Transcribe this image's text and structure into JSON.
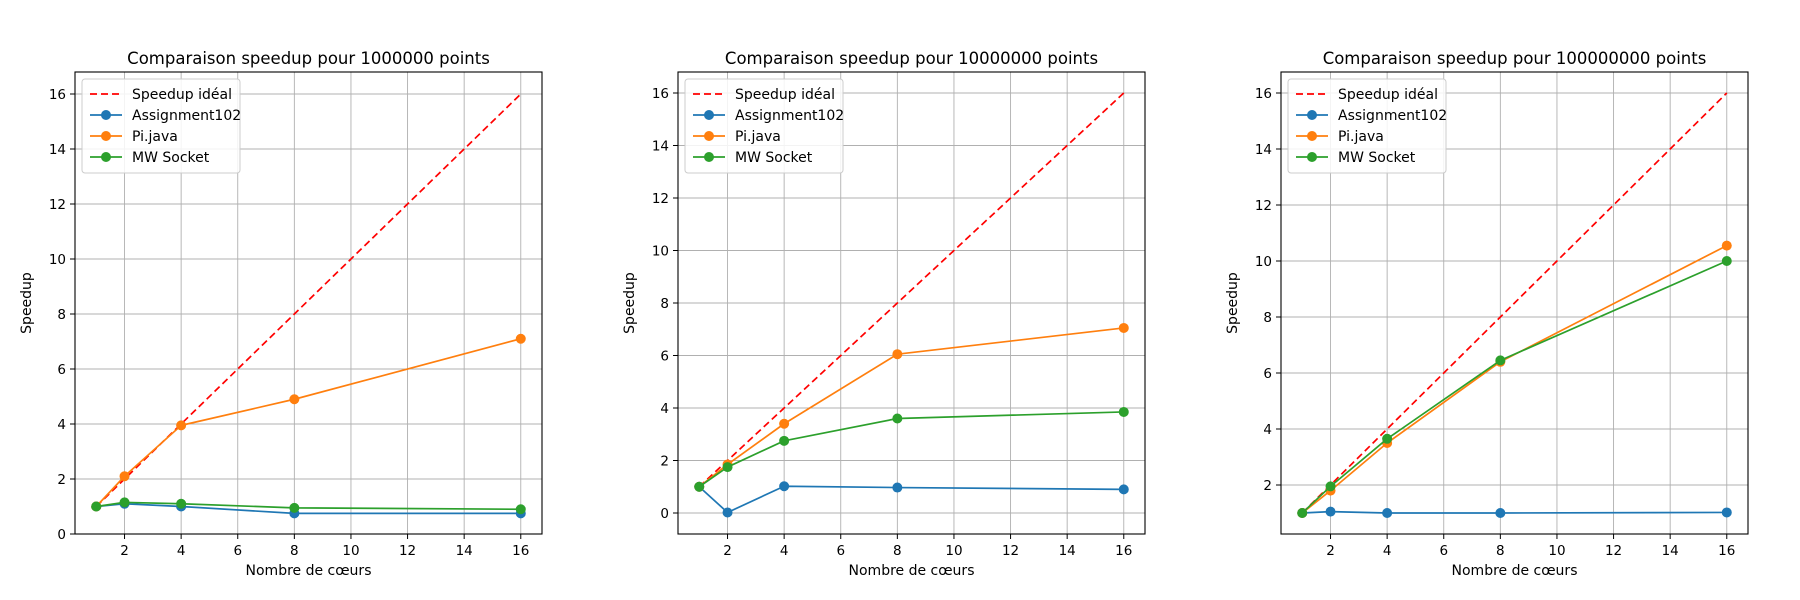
{
  "colors": {
    "ideal": "#ff0000",
    "assignment": "#1f77b4",
    "pijava": "#ff7f0e",
    "mwsocket": "#2ca02c",
    "grid": "#b0b0b0"
  },
  "chart_data": [
    {
      "type": "line",
      "title": "Comparaison speedup pour 1000000 points",
      "xlabel": "Nombre de cœurs",
      "ylabel": "Speedup",
      "xlim": [
        0.25,
        16.75
      ],
      "ylim": [
        0,
        16.8
      ],
      "xticks": [
        2,
        4,
        6,
        8,
        10,
        12,
        14,
        16
      ],
      "yticks": [
        0,
        2,
        4,
        6,
        8,
        10,
        12,
        14,
        16
      ],
      "grid": true,
      "legend_position": "upper-left",
      "x": [
        1,
        2,
        4,
        8,
        16
      ],
      "series": [
        {
          "name": "Speedup idéal",
          "style": "dashed",
          "markers": false,
          "values": [
            1,
            2,
            4,
            8,
            16
          ]
        },
        {
          "name": "Assignment102",
          "style": "solid",
          "markers": true,
          "values": [
            1.0,
            1.1,
            1.0,
            0.75,
            0.75
          ]
        },
        {
          "name": "Pi.java",
          "style": "solid",
          "markers": true,
          "values": [
            1.0,
            2.1,
            3.95,
            4.9,
            7.1
          ]
        },
        {
          "name": "MW Socket",
          "style": "solid",
          "markers": true,
          "values": [
            1.0,
            1.15,
            1.1,
            0.95,
            0.9
          ]
        }
      ]
    },
    {
      "type": "line",
      "title": "Comparaison speedup pour 10000000 points",
      "xlabel": "Nombre de cœurs",
      "ylabel": "Speedup",
      "xlim": [
        0.25,
        16.75
      ],
      "ylim": [
        -0.8,
        16.8
      ],
      "xticks": [
        2,
        4,
        6,
        8,
        10,
        12,
        14,
        16
      ],
      "yticks": [
        0,
        2,
        4,
        6,
        8,
        10,
        12,
        14,
        16
      ],
      "grid": true,
      "legend_position": "upper-left",
      "x": [
        1,
        2,
        4,
        8,
        16
      ],
      "series": [
        {
          "name": "Speedup idéal",
          "style": "dashed",
          "markers": false,
          "values": [
            1,
            2,
            4,
            8,
            16
          ]
        },
        {
          "name": "Assignment102",
          "style": "solid",
          "markers": true,
          "values": [
            1.0,
            0.02,
            1.02,
            0.97,
            0.9
          ]
        },
        {
          "name": "Pi.java",
          "style": "solid",
          "markers": true,
          "values": [
            1.0,
            1.85,
            3.4,
            6.05,
            7.05
          ]
        },
        {
          "name": "MW Socket",
          "style": "solid",
          "markers": true,
          "values": [
            1.0,
            1.75,
            2.75,
            3.6,
            3.85
          ]
        }
      ]
    },
    {
      "type": "line",
      "title": "Comparaison speedup pour 100000000 points",
      "xlabel": "Nombre de cœurs",
      "ylabel": "Speedup",
      "xlim": [
        0.25,
        16.75
      ],
      "ylim": [
        0.25,
        16.75
      ],
      "xticks": [
        2,
        4,
        6,
        8,
        10,
        12,
        14,
        16
      ],
      "yticks": [
        2,
        4,
        6,
        8,
        10,
        12,
        14,
        16
      ],
      "grid": true,
      "legend_position": "upper-left",
      "x": [
        1,
        2,
        4,
        8,
        16
      ],
      "series": [
        {
          "name": "Speedup idéal",
          "style": "dashed",
          "markers": false,
          "values": [
            1,
            2,
            4,
            8,
            16
          ]
        },
        {
          "name": "Assignment102",
          "style": "solid",
          "markers": true,
          "values": [
            1.0,
            1.05,
            1.0,
            1.0,
            1.02
          ]
        },
        {
          "name": "Pi.java",
          "style": "solid",
          "markers": true,
          "values": [
            1.0,
            1.8,
            3.5,
            6.4,
            10.55
          ]
        },
        {
          "name": "MW Socket",
          "style": "solid",
          "markers": true,
          "values": [
            1.0,
            1.95,
            3.65,
            6.45,
            10.0
          ]
        }
      ]
    }
  ]
}
